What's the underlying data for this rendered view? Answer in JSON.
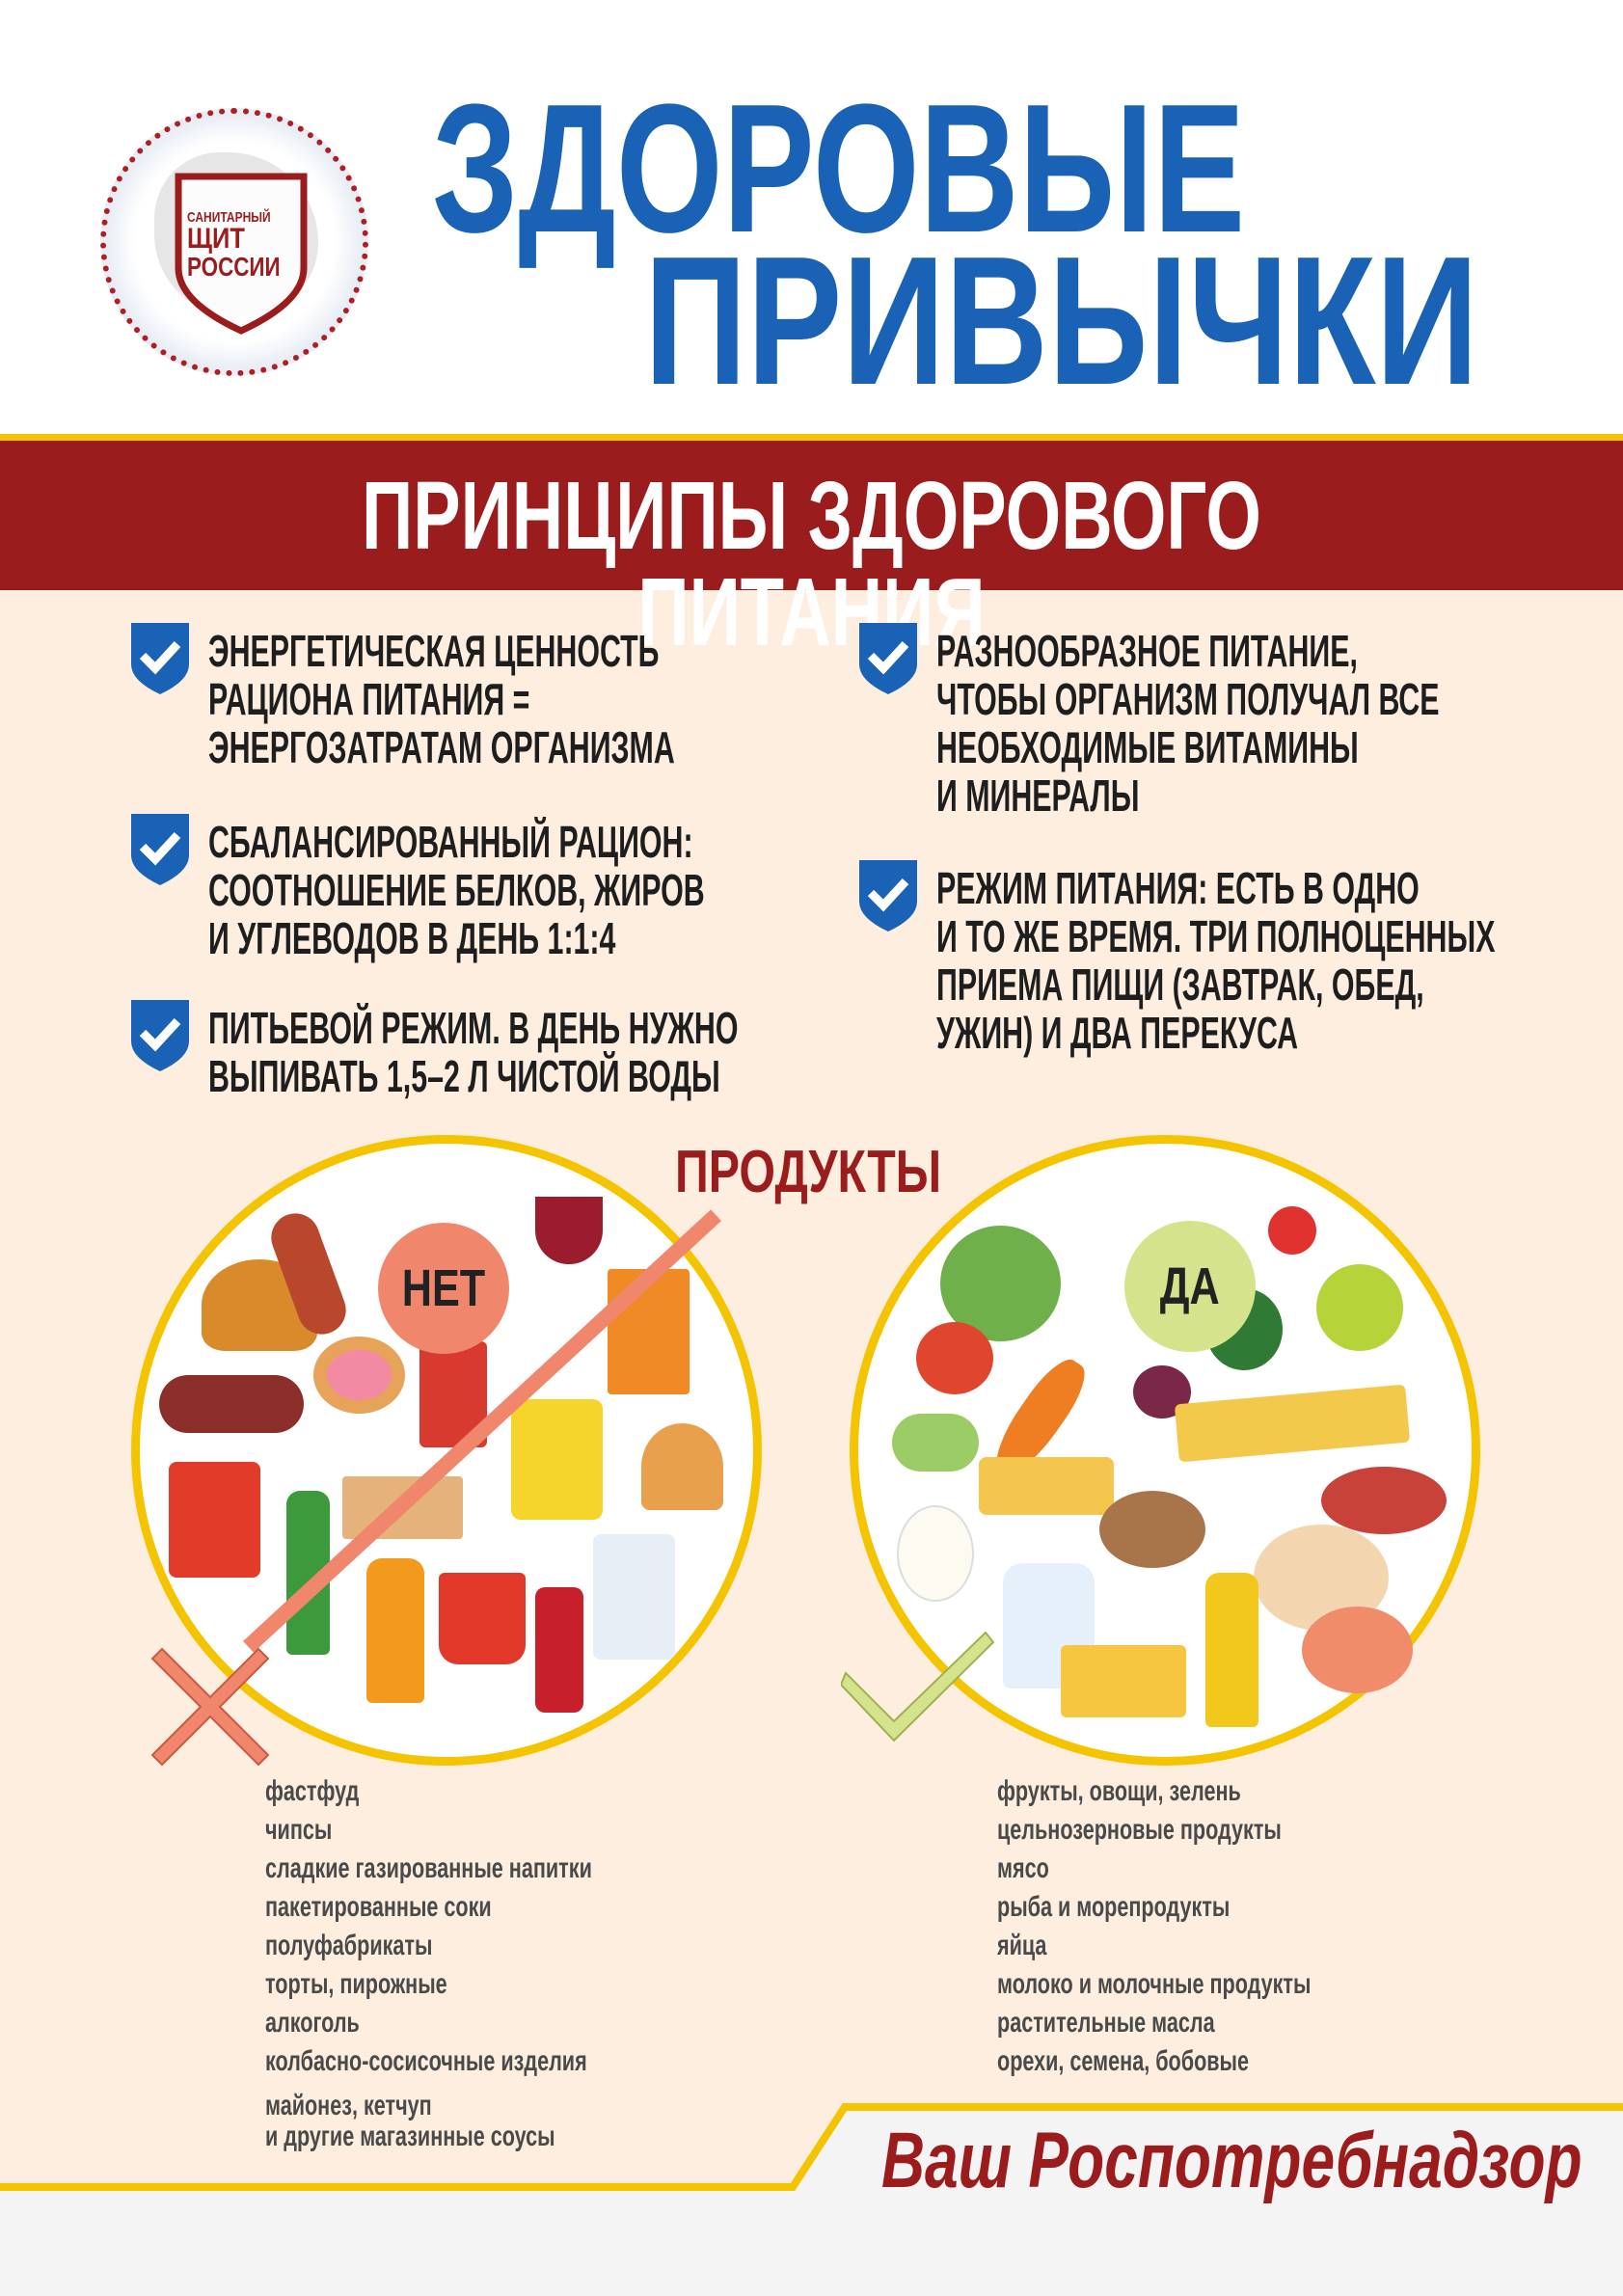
{
  "logo": {
    "line1": "САНИТАРНЫЙ",
    "line2": "ЩИТ",
    "line3": "РОССИИ"
  },
  "header": {
    "title_line1": "ЗДОРОВЫЕ",
    "title_line2": "ПРИВЫЧКИ"
  },
  "band": {
    "title": "ПРИНЦИПЫ ЗДОРОВОГО ПИТАНИЯ"
  },
  "principles_left": [
    {
      "lines": [
        "ЭНЕРГЕТИЧЕСКАЯ ЦЕННОСТЬ",
        "РАЦИОНА ПИТАНИЯ =",
        "ЭНЕРГОЗАТРАТАМ  ОРГАНИЗМА"
      ]
    },
    {
      "lines": [
        "СБАЛАНСИРОВАННЫЙ РАЦИОН:",
        "СООТНОШЕНИЕ БЕЛКОВ, ЖИРОВ",
        "И УГЛЕВОДОВ В ДЕНЬ 1:1:4"
      ]
    },
    {
      "lines": [
        "ПИТЬЕВОЙ РЕЖИМ. В ДЕНЬ НУЖНО",
        "ВЫПИВАТЬ 1,5–2 Л ЧИСТОЙ ВОДЫ"
      ]
    }
  ],
  "principles_right": [
    {
      "lines": [
        "РАЗНООБРАЗНОЕ ПИТАНИЕ,",
        "ЧТОБЫ ОРГАНИЗМ ПОЛУЧАЛ ВСЕ",
        "НЕОБХОДИМЫЕ ВИТАМИНЫ",
        "И МИНЕРАЛЫ"
      ]
    },
    {
      "lines": [
        "РЕЖИМ ПИТАНИЯ: ЕСТЬ В ОДНО",
        "И ТО ЖЕ ВРЕМЯ. ТРИ ПОЛНОЦЕННЫХ",
        "ПРИЕМА ПИЩИ (ЗАВТРАК, ОБЕД,",
        "УЖИН) И ДВА ПЕРЕКУСА"
      ]
    }
  ],
  "products": {
    "heading": "ПРОДУКТЫ",
    "no_label": "НЕТ",
    "yes_label": "ДА",
    "no_list": [
      "фастфуд",
      "чипсы",
      "сладкие газированные напитки",
      "пакетированные соки",
      "полуфабрикаты",
      "торты, пирожные",
      "алкоголь",
      "колбасно-сосисочные изделия",
      "майонез, кетчуп",
      "и другие магазинные соусы"
    ],
    "yes_list": [
      "фрукты, овощи, зелень",
      "цельнозерновые продукты",
      "мясо",
      "рыба и морепродукты",
      "яйца",
      "молоко и молочные продукты",
      "растительные масла",
      "орехи, семена, бобовые"
    ]
  },
  "footer": {
    "signature": "Ваш Роспотребнадзор"
  },
  "colors": {
    "blue": "#1a62b5",
    "dark_red": "#9b1c1c",
    "yellow": "#f5c400",
    "cream": "#fdeee0",
    "no_badge": "#f0866c",
    "yes_badge": "#d4e38c"
  }
}
